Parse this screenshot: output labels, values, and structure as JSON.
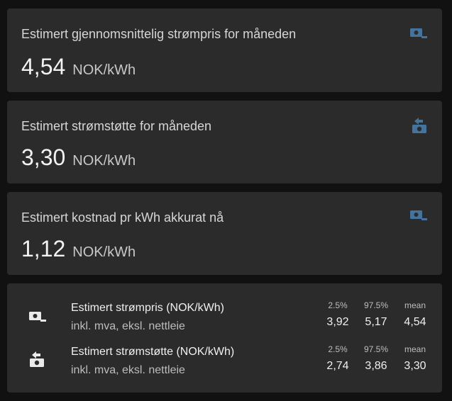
{
  "colors": {
    "page_background": "#111111",
    "card_background": "#2b2b2b",
    "icon_blue": "#44739e"
  },
  "cards": [
    {
      "title": "Estimert gjennomsnittelig strømpris for måneden",
      "value": "4,54",
      "unit": "NOK/kWh",
      "icon": "cash-minus-icon"
    },
    {
      "title": "Estimert strømstøtte for måneden",
      "value": "3,30",
      "unit": "NOK/kWh",
      "icon": "cash-refund-icon"
    },
    {
      "title": "Estimert kostnad pr kWh akkurat nå",
      "value": "1,12",
      "unit": "NOK/kWh",
      "icon": "cash-minus-icon"
    }
  ],
  "statistics": {
    "rows": [
      {
        "name": "Estimert strømpris (NOK/kWh)",
        "subtitle": "inkl. mva, eksl. nettleie",
        "icon": "cash-minus-icon",
        "labels": [
          "2.5%",
          "97.5%",
          "mean"
        ],
        "values": [
          "3,92",
          "5,17",
          "4,54"
        ]
      },
      {
        "name": "Estimert strømstøtte (NOK/kWh)",
        "subtitle": "inkl. mva, eksl. nettleie",
        "icon": "cash-refund-icon",
        "labels": [
          "2.5%",
          "97.5%",
          "mean"
        ],
        "values": [
          "2,74",
          "3,86",
          "3,30"
        ]
      }
    ]
  }
}
